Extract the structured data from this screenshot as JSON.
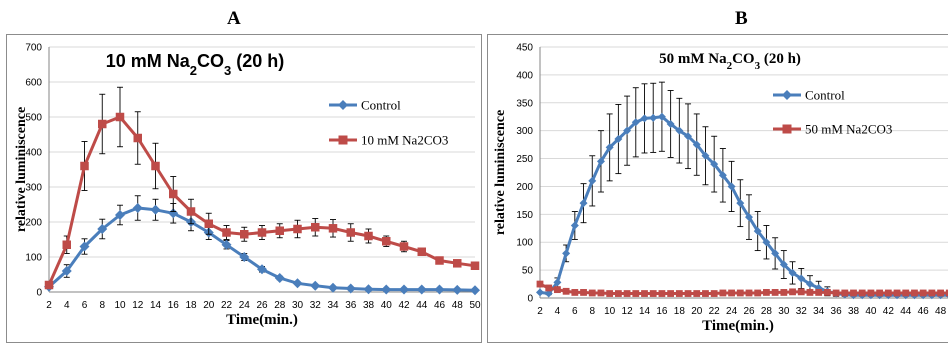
{
  "panel_letters": [
    "A",
    "B"
  ],
  "colors": {
    "control": "#4a7ebb",
    "treatment": "#be4b48",
    "grid": "#d9d9d9",
    "axis": "#868686"
  },
  "chart_data": [
    {
      "type": "line",
      "title_parts": [
        "10 mM Na",
        "2",
        "CO",
        "3",
        " (20 h)"
      ],
      "xlabel": "Time(min.)",
      "ylabel": "relative luminiscence",
      "x": [
        2,
        4,
        6,
        8,
        10,
        12,
        14,
        16,
        18,
        20,
        22,
        24,
        26,
        28,
        30,
        32,
        34,
        36,
        38,
        40,
        42,
        44,
        46,
        48,
        50
      ],
      "ylim": [
        0,
        700
      ],
      "yticks": [
        0,
        100,
        200,
        300,
        400,
        500,
        600,
        700
      ],
      "grid": true,
      "legend_position": "top-right",
      "series": [
        {
          "name": "Control",
          "color": "#4a7ebb",
          "marker": "diamond",
          "values": [
            15,
            60,
            130,
            180,
            220,
            240,
            235,
            225,
            200,
            170,
            135,
            100,
            65,
            40,
            25,
            18,
            12,
            10,
            8,
            7,
            7,
            7,
            7,
            6,
            5
          ],
          "errors": [
            0,
            18,
            22,
            28,
            28,
            35,
            30,
            28,
            25,
            20,
            12,
            10,
            8,
            5,
            3,
            2,
            2,
            1,
            1,
            1,
            1,
            1,
            1,
            1,
            1
          ]
        },
        {
          "name": "10 mM Na2CO3",
          "color": "#be4b48",
          "marker": "square",
          "values": [
            20,
            135,
            360,
            480,
            500,
            440,
            360,
            280,
            230,
            195,
            170,
            165,
            170,
            175,
            180,
            185,
            182,
            170,
            160,
            145,
            130,
            115,
            90,
            82,
            75
          ],
          "errors": [
            0,
            25,
            70,
            85,
            85,
            75,
            65,
            50,
            35,
            30,
            20,
            20,
            20,
            20,
            25,
            25,
            25,
            25,
            20,
            15,
            15,
            10,
            8,
            8,
            8
          ]
        }
      ]
    },
    {
      "type": "line",
      "title_parts": [
        "50 mM Na",
        "2",
        "CO",
        "3",
        " (20 h)"
      ],
      "xlabel": "Time(min.)",
      "ylabel": "relative luminiscence",
      "x": [
        2,
        3,
        4,
        5,
        6,
        7,
        8,
        9,
        10,
        11,
        12,
        13,
        14,
        15,
        16,
        17,
        18,
        19,
        20,
        21,
        22,
        23,
        24,
        25,
        26,
        27,
        28,
        29,
        30,
        31,
        32,
        33,
        34,
        35,
        36,
        37,
        38,
        39,
        40,
        41,
        42,
        43,
        44,
        45,
        46,
        47,
        48,
        49,
        50
      ],
      "xticks": [
        2,
        4,
        6,
        8,
        10,
        12,
        14,
        16,
        18,
        20,
        22,
        24,
        26,
        28,
        30,
        32,
        34,
        36,
        38,
        40,
        42,
        44,
        46,
        48
      ],
      "ylim": [
        0,
        450
      ],
      "yticks": [
        0,
        50,
        100,
        150,
        200,
        250,
        300,
        350,
        400,
        450
      ],
      "grid": true,
      "legend_position": "top-right",
      "series": [
        {
          "name": "Control",
          "color": "#4a7ebb",
          "marker": "diamond",
          "values": [
            10,
            8,
            28,
            80,
            130,
            170,
            210,
            245,
            270,
            285,
            300,
            315,
            322,
            323,
            325,
            312,
            300,
            290,
            275,
            255,
            240,
            220,
            200,
            170,
            145,
            120,
            100,
            80,
            60,
            45,
            35,
            25,
            18,
            12,
            8,
            6,
            5,
            5,
            5,
            5,
            5,
            5,
            5,
            5,
            5,
            5,
            5,
            5,
            5
          ],
          "errors": [
            0,
            2,
            8,
            15,
            25,
            35,
            45,
            55,
            60,
            62,
            62,
            62,
            62,
            62,
            62,
            60,
            58,
            58,
            55,
            52,
            50,
            48,
            45,
            42,
            40,
            35,
            30,
            28,
            25,
            20,
            18,
            15,
            12,
            8,
            5,
            3,
            2,
            2,
            2,
            2,
            2,
            2,
            2,
            2,
            2,
            2,
            2,
            2,
            2
          ]
        },
        {
          "name": "50 mM Na2CO3",
          "color": "#be4b48",
          "marker": "square",
          "values": [
            25,
            18,
            15,
            12,
            10,
            10,
            9,
            9,
            8,
            8,
            8,
            8,
            8,
            8,
            8,
            8,
            8,
            8,
            8,
            8,
            8,
            9,
            9,
            9,
            9,
            9,
            10,
            10,
            10,
            11,
            11,
            10,
            10,
            10,
            9,
            9,
            9,
            9,
            9,
            9,
            9,
            9,
            9,
            9,
            9,
            9,
            9,
            9,
            9
          ],
          "errors": [
            0,
            2,
            2,
            2,
            1,
            1,
            1,
            1,
            1,
            1,
            1,
            1,
            1,
            1,
            1,
            1,
            1,
            1,
            1,
            1,
            1,
            1,
            1,
            1,
            1,
            1,
            2,
            2,
            2,
            2,
            2,
            2,
            2,
            1,
            1,
            1,
            1,
            1,
            1,
            1,
            1,
            1,
            1,
            1,
            1,
            1,
            1,
            1,
            1
          ]
        }
      ]
    }
  ]
}
